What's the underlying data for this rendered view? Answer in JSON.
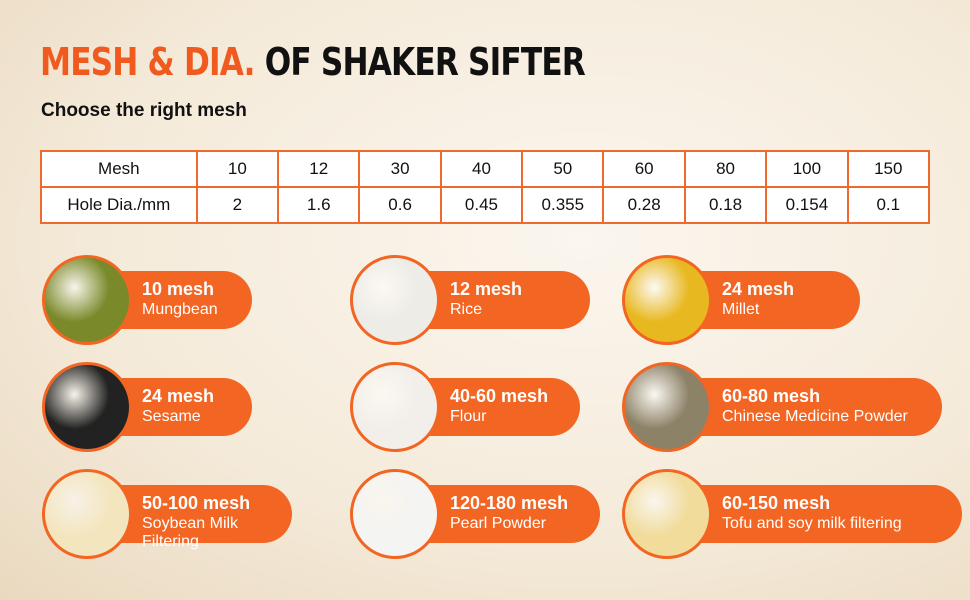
{
  "title": {
    "highlight": "MESH & DIA.",
    "rest": "OF SHAKER SIFTER"
  },
  "subtitle": "Choose the right mesh",
  "table": {
    "header": "Mesh",
    "row_label": "Hole Dia./mm",
    "mesh": [
      "10",
      "12",
      "30",
      "40",
      "50",
      "60",
      "80",
      "100",
      "150"
    ],
    "dia": [
      "2",
      "1.6",
      "0.6",
      "0.45",
      "0.355",
      "0.28",
      "0.18",
      "0.154",
      "0.1"
    ]
  },
  "items": [
    {
      "mesh": "10 mesh",
      "name": "Mungbean",
      "color": "#7a8a2a"
    },
    {
      "mesh": "12 mesh",
      "name": "Rice",
      "color": "#eeece6"
    },
    {
      "mesh": "24 mesh",
      "name": "Millet",
      "color": "#e8b820"
    },
    {
      "mesh": "24 mesh",
      "name": "Sesame",
      "color": "#222222"
    },
    {
      "mesh": "40-60 mesh",
      "name": "Flour",
      "color": "#f2efea"
    },
    {
      "mesh": "60-80 mesh",
      "name": "Chinese Medicine Powder",
      "color": "#8c8268"
    },
    {
      "mesh": "50-100 mesh",
      "name": "Soybean Milk Filtering",
      "color": "#f3e6bf"
    },
    {
      "mesh": "120-180 mesh",
      "name": "Pearl Powder",
      "color": "#f4f4f2"
    },
    {
      "mesh": "60-150 mesh",
      "name": "Tofu and soy milk filtering",
      "color": "#f1dc9c"
    }
  ],
  "accent": "#f26522"
}
